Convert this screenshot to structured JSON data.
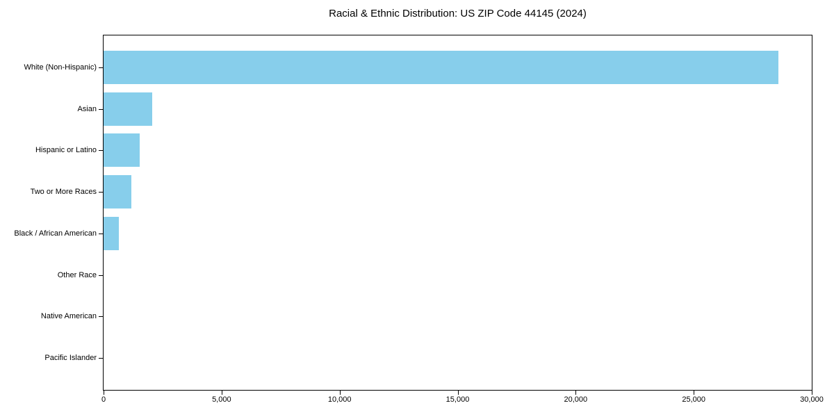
{
  "title": "Racial & Ethnic Distribution: US ZIP Code 44145 (2024)",
  "colors": {
    "bar": "#87CEEB",
    "spine": "#000000",
    "text": "#000000",
    "background": "#FFFFFF"
  },
  "chart_data": {
    "type": "bar",
    "orientation": "horizontal",
    "title": "Racial & Ethnic Distribution: US ZIP Code 44145 (2024)",
    "xlabel": "",
    "ylabel": "",
    "categories": [
      "White (Non-Hispanic)",
      "Asian",
      "Hispanic or Latino",
      "Two or More Races",
      "Black / African American",
      "Other Race",
      "Native American",
      "Pacific Islander"
    ],
    "values": [
      28580,
      2060,
      1530,
      1180,
      650,
      0,
      0,
      0
    ],
    "xlim": [
      0,
      30000
    ],
    "xticks": [
      0,
      5000,
      10000,
      15000,
      20000,
      25000,
      30000
    ],
    "xtick_labels": [
      "0",
      "5,000",
      "10,000",
      "15,000",
      "20,000",
      "25,000",
      "30,000"
    ],
    "grid": false,
    "legend": null,
    "bar_color": "#87CEEB"
  }
}
